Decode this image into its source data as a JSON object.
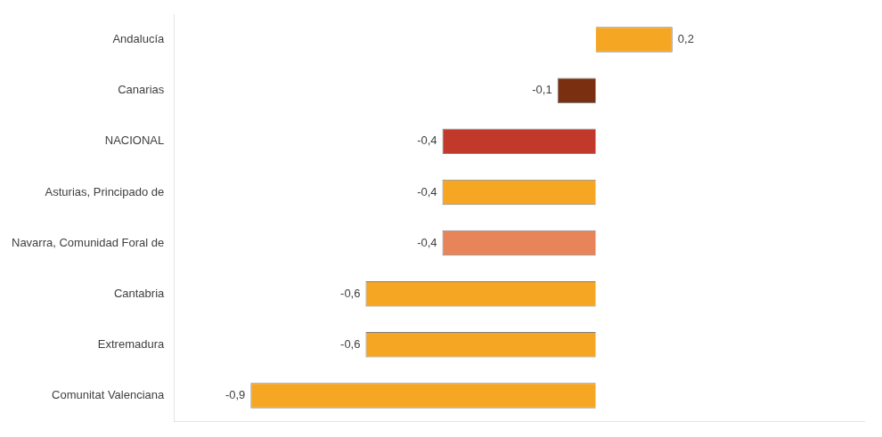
{
  "chart_data": {
    "type": "bar",
    "orientation": "horizontal",
    "categories": [
      "Andalucía",
      "Canarias",
      "NACIONAL",
      "Asturias, Principado de",
      "Navarra, Comunidad Foral de",
      "Cantabria",
      "Extremadura",
      "Comunitat Valenciana"
    ],
    "values": [
      0.2,
      -0.1,
      -0.4,
      -0.4,
      -0.4,
      -0.6,
      -0.6,
      -0.9
    ],
    "value_labels": [
      "0,2",
      "-0,1",
      "-0,4",
      "-0,4",
      "-0,4",
      "-0,6",
      "-0,6",
      "-0,9"
    ],
    "data_labels": true,
    "colors": [
      "#f5a623",
      "#7a3010",
      "#c0392b",
      "#f5a623",
      "#e8845a",
      "#f5a623",
      "#f5a623",
      "#f5a623"
    ],
    "xlim": [
      -1.1,
      0.7
    ],
    "grid": false,
    "tick_labels": "y"
  }
}
